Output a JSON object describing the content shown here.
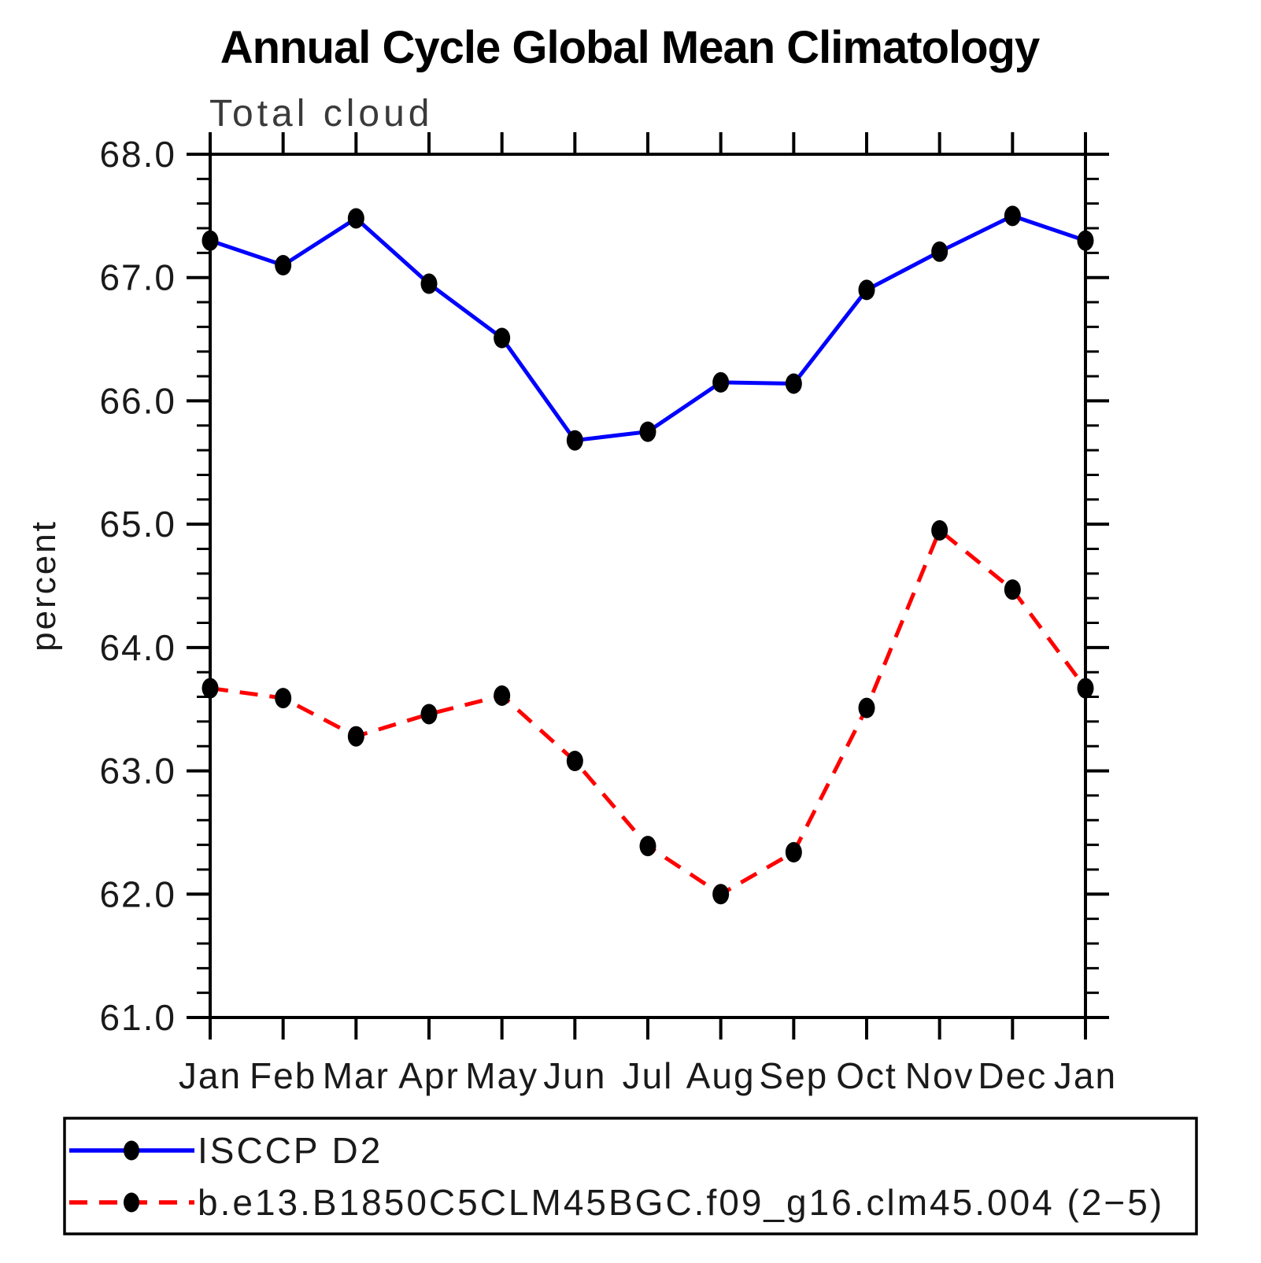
{
  "page": {
    "background": "#ffffff"
  },
  "chart_data": {
    "type": "line",
    "title": "Annual Cycle Global Mean Climatology",
    "subtitle": "Total cloud",
    "xlabel": "",
    "ylabel": "percent",
    "categories": [
      "Jan",
      "Feb",
      "Mar",
      "Apr",
      "May",
      "Jun",
      "Jul",
      "Aug",
      "Sep",
      "Oct",
      "Nov",
      "Dec",
      "Jan"
    ],
    "series": [
      {
        "name": "ISCCP D2",
        "line_style": "solid",
        "color": "#0000ff",
        "marker": "filled-circle",
        "marker_color": "#000000",
        "values": [
          67.3,
          67.1,
          67.48,
          66.95,
          66.51,
          65.68,
          65.75,
          66.15,
          66.14,
          66.9,
          67.21,
          67.5,
          67.3
        ]
      },
      {
        "name": "b.e13.B1850C5CLM45BGC.f09_g16.clm45.004 (2−5)",
        "line_style": "dashed",
        "color": "#ff0000",
        "marker": "filled-circle",
        "marker_color": "#000000",
        "values": [
          63.67,
          63.59,
          63.28,
          63.46,
          63.61,
          63.08,
          62.39,
          62.0,
          62.34,
          63.51,
          64.95,
          64.47,
          63.67
        ]
      }
    ],
    "ylim": [
      61.0,
      68.0
    ],
    "y_major_step": 1.0,
    "y_minor_step": 0.2,
    "y_tick_labels": [
      "61.0",
      "62.0",
      "63.0",
      "64.0",
      "65.0",
      "66.0",
      "67.0",
      "68.0"
    ],
    "grid": false,
    "legend_position": "bottom",
    "axis_color": "#000000"
  }
}
